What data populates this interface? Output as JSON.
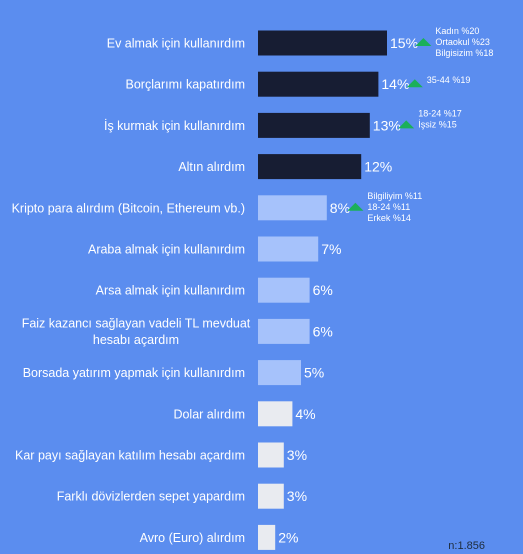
{
  "chart_data": {
    "type": "bar",
    "orientation": "horizontal",
    "categories": [
      "Ev almak için kullanırdım",
      "Borçlarımı kapatırdım",
      "İş kurmak için kullanırdım",
      "Altın alırdım",
      "Kripto para alırdım (Bitcoin, Ethereum vb.)",
      "Araba almak için kullanırdım",
      "Arsa almak için kullanırdım",
      "Faiz kazancı sağlayan vadeli TL mevduat hesabı açardım",
      "Borsada yatırım yapmak için kullanırdım",
      "Dolar alırdım",
      "Kar payı sağlayan katılım hesabı açardım",
      "Farklı dövizlerden sepet yapardım",
      "Avro (Euro) alırdım"
    ],
    "values": [
      15,
      14,
      13,
      12,
      8,
      7,
      6,
      6,
      5,
      4,
      3,
      3,
      2
    ],
    "value_labels": [
      "15%",
      "14%",
      "13%",
      "12%",
      "8%",
      "7%",
      "6%",
      "6%",
      "5%",
      "4%",
      "3%",
      "3%",
      "2%"
    ],
    "bar_tiers": [
      "dark",
      "dark",
      "dark",
      "dark",
      "light",
      "light",
      "light",
      "light",
      "light",
      "white",
      "white",
      "white",
      "white"
    ],
    "tier_colors": {
      "dark": "#171d33",
      "light": "#a6c2fb",
      "white": "#e9ebf0"
    },
    "annotations": [
      {
        "category_index": 0,
        "lines": [
          "Kadın %20",
          "Ortaokul %23",
          "Bilgisizim %18"
        ]
      },
      {
        "category_index": 1,
        "lines": [
          "35-44 %19"
        ]
      },
      {
        "category_index": 2,
        "lines": [
          "18-24 %17",
          "İşsiz %15"
        ]
      },
      {
        "category_index": 4,
        "lines": [
          "Bilgiliyim %11",
          "18-24 %11",
          "Erkek %14"
        ]
      }
    ],
    "annotation_marker_color": "#1bb05a",
    "footer_note": "n:1.856"
  }
}
